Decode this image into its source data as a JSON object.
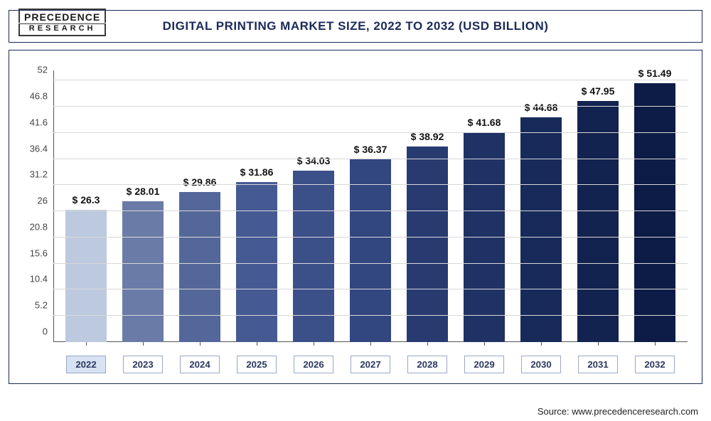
{
  "logo": {
    "line1": "PRECEDENCE",
    "line2": "RESEARCH"
  },
  "chart": {
    "type": "bar",
    "title": "DIGITAL PRINTING MARKET SIZE, 2022 TO 2032 (USD BILLION)",
    "title_fontsize": 17,
    "title_color": "#1a2a58",
    "y": {
      "min": 0,
      "max": 54,
      "ticks": [
        0,
        5.2,
        10.4,
        15.6,
        20.8,
        26,
        31.2,
        36.4,
        41.6,
        46.8,
        52
      ],
      "tick_labels": [
        "0",
        "5.2",
        "10.4",
        "15.6",
        "20.8",
        "26",
        "31.2",
        "36.4",
        "41.6",
        "46.8",
        "52"
      ],
      "tick_fontsize": 13,
      "tick_color": "#444444"
    },
    "x": {
      "categories": [
        "2022",
        "2023",
        "2024",
        "2025",
        "2026",
        "2027",
        "2028",
        "2029",
        "2030",
        "2031",
        "2032"
      ],
      "highlight_index": 0,
      "box_border": "#9aa7c8",
      "box_highlight_bg": "#d7e2f2",
      "fontsize": 13.2,
      "font_color": "#2b385f"
    },
    "series": {
      "values": [
        26.3,
        28.01,
        29.86,
        31.86,
        34.03,
        36.37,
        38.92,
        41.68,
        44.68,
        47.95,
        51.49
      ],
      "value_labels": [
        "$ 26.3",
        "$ 28.01",
        "$ 29.86",
        "$ 31.86",
        "$ 34.03",
        "$ 36.37",
        "$ 38.92",
        "$ 41.68",
        "$ 44.68",
        "$ 47.95",
        "$ 51.49"
      ],
      "colors": [
        "#bcc9de",
        "#6a7ba7",
        "#54679a",
        "#455a93",
        "#3b4f89",
        "#32467f",
        "#283b71",
        "#1f3265",
        "#182a5a",
        "#12234f",
        "#0c1c46"
      ],
      "label_fontsize": 14,
      "label_color": "#111111",
      "bar_width_ratio": 0.72
    },
    "grid_color": "#d8d8d8",
    "axis_color": "#555555",
    "background_color": "#ffffff",
    "border_color": "#1a2a58",
    "aspect": "1000x592"
  },
  "source": {
    "prefix": "Source: ",
    "text": "www.precedenceresearch.com"
  }
}
